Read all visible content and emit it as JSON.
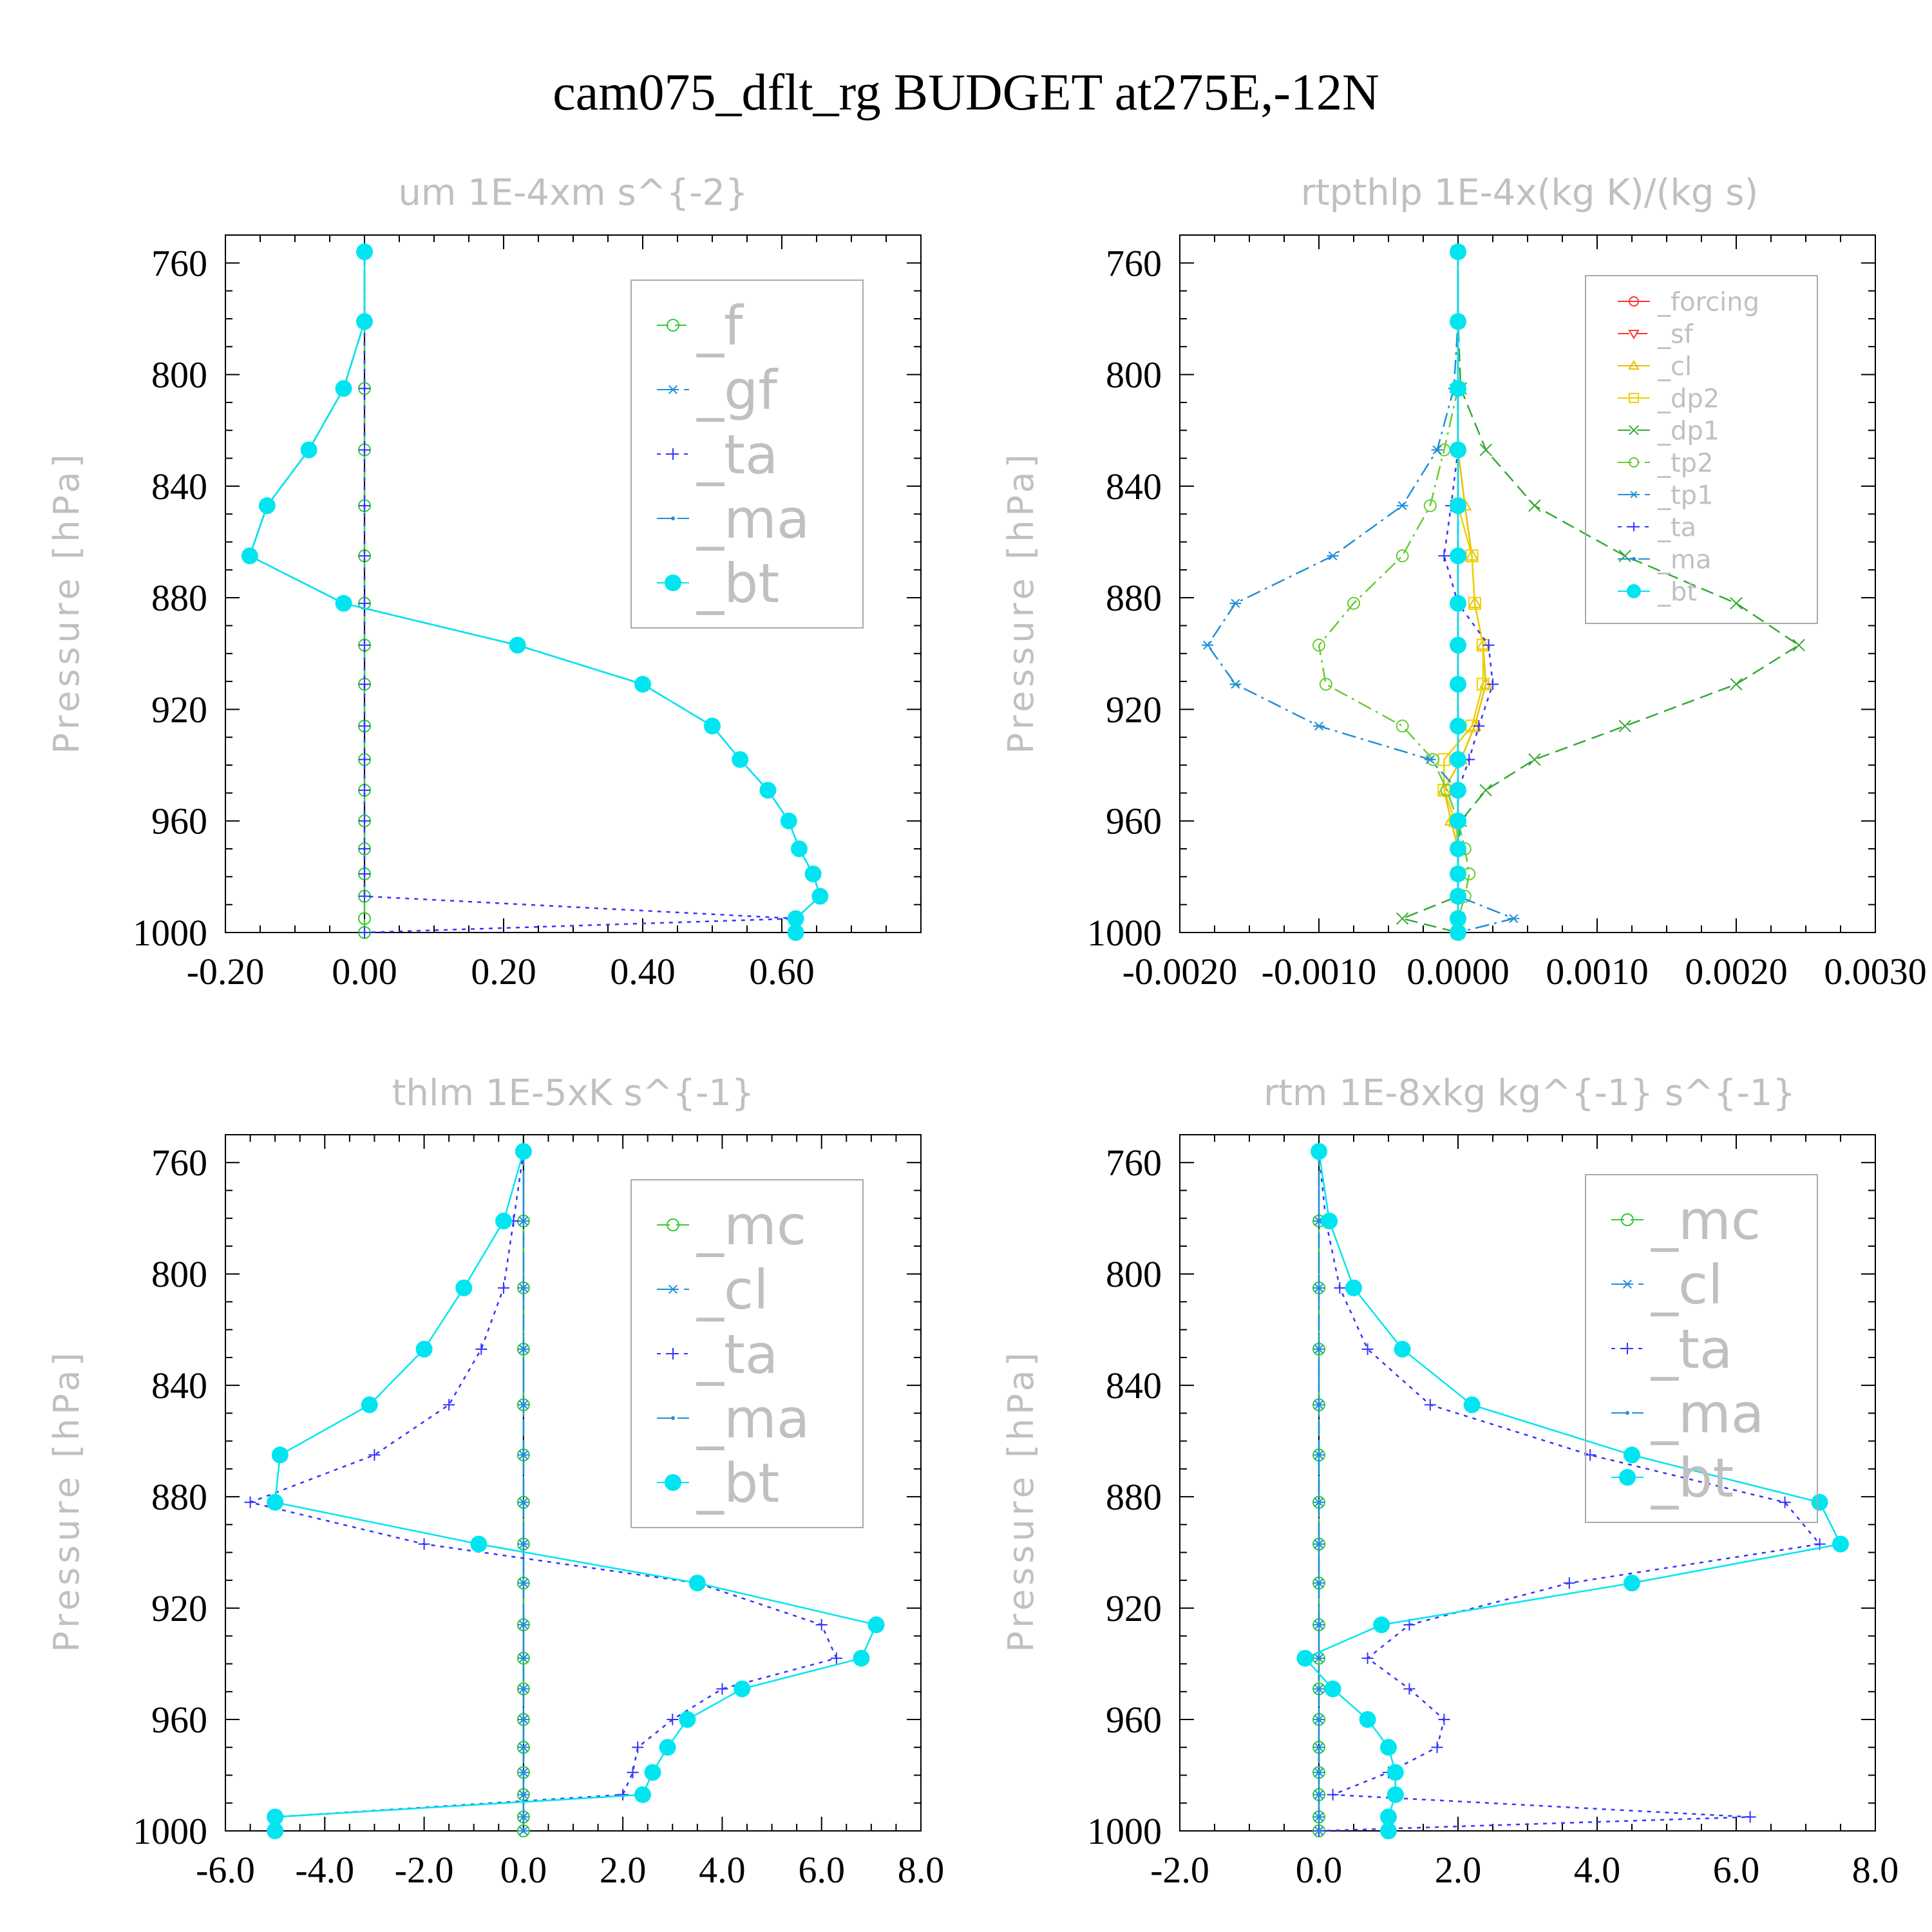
{
  "figure_title": "cam075_dflt_rg  BUDGET at275E,-12N",
  "colors": {
    "_f": "#33cc33",
    "_gf": "#1f8fd8",
    "_ta": "#3333ff",
    "_ma": "#1f8fd8",
    "_bt": "#00e5f0",
    "_forcing": "#ff3333",
    "_sf": "#ff3333",
    "_cl": "#e8c000",
    "_dp2": "#f0d000",
    "_dp1": "#33aa33",
    "_tp2": "#66cc33",
    "_tp1": "#1f8fd8",
    "_mc": "#33cc33",
    "_cl_b": "#1f8fd8"
  },
  "chart_data": [
    {
      "type": "line",
      "title": "um   1E-4xm s^{-2}",
      "ylabel": "Pressure [hPa]",
      "xlim": [
        -0.2,
        0.8
      ],
      "ylim": [
        1000,
        750
      ],
      "xticks": [
        -0.2,
        0.0,
        0.2,
        0.4,
        0.6
      ],
      "xtick_labels": [
        "-0.20",
        "0.00",
        "0.20",
        "0.40",
        "0.60"
      ],
      "yticks": [
        760,
        800,
        840,
        880,
        920,
        960,
        1000
      ],
      "ytick_labels": [
        "760",
        "800",
        "840",
        "880",
        "920",
        "960",
        "1000"
      ],
      "legend_size": "large",
      "y": [
        756,
        781,
        805,
        827,
        847,
        865,
        882,
        897,
        911,
        926,
        938,
        949,
        960,
        970,
        979,
        987,
        995,
        1000
      ],
      "series": [
        {
          "name": "_f",
          "color_key": "_f",
          "marker": "o",
          "x": [
            0,
            0,
            0,
            0,
            0,
            0,
            0,
            0,
            0,
            0,
            0,
            0,
            0,
            0,
            0,
            0,
            0,
            0
          ]
        },
        {
          "name": "_gf",
          "color_key": "_gf",
          "marker": "*",
          "x": [
            0.0,
            0.0,
            -0.03,
            -0.08,
            -0.14,
            -0.165,
            -0.03,
            0.22,
            0.4,
            0.5,
            0.54,
            0.58,
            0.61,
            0.625,
            0.645,
            0.655,
            0.62,
            0.62
          ]
        },
        {
          "name": "_ta",
          "color_key": "_ta",
          "marker": "+",
          "x": [
            0,
            0,
            0,
            0,
            0,
            0,
            0,
            0,
            0,
            0,
            0,
            0,
            0,
            0,
            0,
            0,
            0.62,
            0.0
          ]
        },
        {
          "name": "_ma",
          "color_key": "_ma",
          "marker": ".",
          "x": [
            0.0,
            0.0,
            -0.03,
            -0.08,
            -0.14,
            -0.165,
            -0.03,
            0.22,
            0.4,
            0.5,
            0.54,
            0.58,
            0.61,
            0.625,
            0.645,
            0.655,
            0.62,
            0.62
          ]
        },
        {
          "name": "_bt",
          "color_key": "_bt",
          "marker": "dot",
          "x": [
            0.0,
            0.0,
            -0.03,
            -0.08,
            -0.14,
            -0.165,
            -0.03,
            0.22,
            0.4,
            0.5,
            0.54,
            0.58,
            0.61,
            0.625,
            0.645,
            0.655,
            0.62,
            0.62
          ]
        }
      ]
    },
    {
      "type": "line",
      "title": "rtpthlp   1E-4x(kg K)/(kg s)",
      "ylabel": "Pressure [hPa]",
      "xlim": [
        -0.002,
        0.003
      ],
      "ylim": [
        1000,
        750
      ],
      "xticks": [
        -0.002,
        -0.001,
        0.0,
        0.001,
        0.002,
        0.003
      ],
      "xtick_labels": [
        "-0.0020",
        "-0.0010",
        "0.0000",
        "0.0010",
        "0.0020",
        "0.0030"
      ],
      "yticks": [
        760,
        800,
        840,
        880,
        920,
        960,
        1000
      ],
      "ytick_labels": [
        "760",
        "800",
        "840",
        "880",
        "920",
        "960",
        "1000"
      ],
      "legend_size": "small",
      "y": [
        756,
        781,
        805,
        827,
        847,
        865,
        882,
        897,
        911,
        926,
        938,
        949,
        960,
        970,
        979,
        987,
        995,
        1000
      ],
      "series": [
        {
          "name": "_forcing",
          "color_key": "_forcing",
          "marker": "o",
          "x": [
            0,
            0,
            0,
            0,
            0,
            0,
            0,
            0,
            0,
            0,
            0,
            0,
            0,
            0,
            0,
            0,
            0,
            0
          ]
        },
        {
          "name": "_sf",
          "color_key": "_sf",
          "marker": "v",
          "x": [
            0,
            0,
            0,
            0,
            0,
            0,
            0,
            0,
            0,
            0,
            0,
            0,
            0,
            0,
            0,
            0,
            0,
            0
          ]
        },
        {
          "name": "_cl",
          "color_key": "_cl",
          "marker": "^",
          "x": [
            0,
            0,
            0,
            0,
            5e-05,
            0.0001,
            0.00012,
            0.00018,
            0.0002,
            0.00012,
            2e-05,
            -0.0001,
            -5e-05,
            0,
            0,
            0,
            0,
            0
          ]
        },
        {
          "name": "_dp2",
          "color_key": "_dp2",
          "marker": "s",
          "x": [
            0,
            0,
            0,
            0,
            0,
            0.0001,
            0.00012,
            0.00018,
            0.00018,
            0.0001,
            -0.0001,
            -0.0001,
            -2e-05,
            0,
            0,
            0,
            0,
            0
          ]
        },
        {
          "name": "_dp1",
          "color_key": "_dp1",
          "marker": "x",
          "x": [
            0,
            0,
            2e-05,
            0.0002,
            0.00055,
            0.0012,
            0.002,
            0.00245,
            0.002,
            0.0012,
            0.00055,
            0.0002,
            2e-05,
            0,
            0,
            0,
            -0.0004,
            0
          ]
        },
        {
          "name": "_tp2",
          "color_key": "_tp2",
          "marker": "o",
          "x": [
            0,
            0,
            0,
            -0.0001,
            -0.0002,
            -0.0004,
            -0.00075,
            -0.001,
            -0.00095,
            -0.0004,
            -0.00018,
            -8e-05,
            0,
            5e-05,
            8e-05,
            5e-05,
            0,
            0
          ]
        },
        {
          "name": "_tp1",
          "color_key": "_tp1",
          "marker": "*",
          "x": [
            0,
            0,
            -3e-05,
            -0.00015,
            -0.0004,
            -0.0009,
            -0.0016,
            -0.0018,
            -0.0016,
            -0.001,
            -0.0002,
            0,
            0,
            0,
            0,
            0,
            0.0004,
            0
          ]
        },
        {
          "name": "_ta",
          "color_key": "_ta",
          "marker": "+",
          "x": [
            0,
            0,
            0,
            0,
            -5e-05,
            -0.0001,
            0,
            0.00022,
            0.00025,
            0.00015,
            8e-05,
            0,
            0,
            0,
            0,
            0,
            0,
            0
          ]
        },
        {
          "name": "_ma",
          "color_key": "_ma",
          "marker": ".",
          "x": [
            0,
            0,
            0,
            0,
            0,
            0,
            0,
            0,
            0,
            0,
            0,
            0,
            0,
            0,
            0,
            0,
            0,
            0
          ]
        },
        {
          "name": "_bt",
          "color_key": "_bt",
          "marker": "dot",
          "x": [
            0,
            0,
            0,
            0,
            0,
            0,
            0,
            0,
            0,
            0,
            0,
            0,
            0,
            0,
            0,
            0,
            0,
            0
          ]
        }
      ]
    },
    {
      "type": "line",
      "title": "thlm   1E-5xK s^{-1}",
      "ylabel": "Pressure [hPa]",
      "xlim": [
        -6.0,
        8.0
      ],
      "ylim": [
        1000,
        750
      ],
      "xticks": [
        -6,
        -4,
        -2,
        0,
        2,
        4,
        6,
        8
      ],
      "xtick_labels": [
        "-6.0",
        "-4.0",
        "-2.0",
        "0.0",
        "2.0",
        "4.0",
        "6.0",
        "8.0"
      ],
      "yticks": [
        760,
        800,
        840,
        880,
        920,
        960,
        1000
      ],
      "ytick_labels": [
        "760",
        "800",
        "840",
        "880",
        "920",
        "960",
        "1000"
      ],
      "legend_size": "large",
      "y": [
        756,
        781,
        805,
        827,
        847,
        865,
        882,
        897,
        911,
        926,
        938,
        949,
        960,
        970,
        979,
        987,
        995,
        1000
      ],
      "series": [
        {
          "name": "_mc",
          "color_key": "_mc",
          "marker": "o",
          "x": [
            0,
            0,
            0,
            0,
            0,
            0,
            0,
            0,
            0,
            0,
            0,
            0,
            0,
            0,
            0,
            0,
            0,
            0
          ]
        },
        {
          "name": "_cl",
          "color_key": "_cl_b",
          "marker": "*",
          "x": [
            0,
            0,
            0,
            0,
            0,
            0,
            0,
            0,
            0,
            0,
            0,
            0,
            0,
            0,
            0,
            0,
            0,
            0
          ]
        },
        {
          "name": "_ta",
          "color_key": "_ta",
          "marker": "+",
          "x": [
            0.0,
            -0.2,
            -0.4,
            -0.85,
            -1.5,
            -3.0,
            -5.5,
            -2.0,
            3.5,
            6.0,
            6.3,
            4.0,
            3.0,
            2.3,
            2.2,
            2.0,
            -5.0,
            -5.0
          ]
        },
        {
          "name": "_ma",
          "color_key": "_ma",
          "marker": ".",
          "x": [
            0,
            0,
            0,
            0,
            0,
            0,
            0,
            0,
            0,
            0,
            0,
            0,
            0,
            0,
            0,
            0,
            0,
            0
          ]
        },
        {
          "name": "_bt",
          "color_key": "_bt",
          "marker": "dot",
          "x": [
            0.0,
            -0.4,
            -1.2,
            -2.0,
            -3.1,
            -4.9,
            -5.0,
            -0.9,
            3.5,
            7.1,
            6.8,
            4.4,
            3.3,
            2.9,
            2.6,
            2.4,
            -5.0,
            -5.0
          ]
        }
      ]
    },
    {
      "type": "line",
      "title": "rtm   1E-8xkg kg^{-1} s^{-1}",
      "ylabel": "Pressure [hPa]",
      "xlim": [
        -2.0,
        8.0
      ],
      "ylim": [
        1000,
        750
      ],
      "xticks": [
        -2,
        0,
        2,
        4,
        6,
        8
      ],
      "xtick_labels": [
        "-2.0",
        "0.0",
        "2.0",
        "4.0",
        "6.0",
        "8.0"
      ],
      "yticks": [
        760,
        800,
        840,
        880,
        920,
        960,
        1000
      ],
      "ytick_labels": [
        "760",
        "800",
        "840",
        "880",
        "920",
        "960",
        "1000"
      ],
      "legend_size": "large",
      "y": [
        756,
        781,
        805,
        827,
        847,
        865,
        882,
        897,
        911,
        926,
        938,
        949,
        960,
        970,
        979,
        987,
        995,
        1000
      ],
      "series": [
        {
          "name": "_mc",
          "color_key": "_mc",
          "marker": "o",
          "x": [
            0,
            0,
            0,
            0,
            0,
            0,
            0,
            0,
            0,
            0,
            0,
            0,
            0,
            0,
            0,
            0,
            0,
            0
          ]
        },
        {
          "name": "_cl",
          "color_key": "_cl_b",
          "marker": "*",
          "x": [
            0,
            0,
            0,
            0,
            0,
            0,
            0,
            0,
            0,
            0,
            0,
            0,
            0,
            0,
            0,
            0,
            0,
            0
          ]
        },
        {
          "name": "_ta",
          "color_key": "_ta",
          "marker": "+",
          "x": [
            0.0,
            0.1,
            0.3,
            0.7,
            1.6,
            3.9,
            6.7,
            7.2,
            3.6,
            1.3,
            0.7,
            1.3,
            1.8,
            1.7,
            1.0,
            0.2,
            6.2,
            0.0
          ]
        },
        {
          "name": "_ma",
          "color_key": "_ma",
          "marker": ".",
          "x": [
            0,
            0,
            0,
            0,
            0,
            0,
            0,
            0,
            0,
            0,
            0,
            0,
            0,
            0,
            0,
            0,
            0,
            0
          ]
        },
        {
          "name": "_bt",
          "color_key": "_bt",
          "marker": "dot",
          "x": [
            0.0,
            0.15,
            0.5,
            1.2,
            2.2,
            4.5,
            7.2,
            7.5,
            4.5,
            0.9,
            -0.2,
            0.2,
            0.7,
            1.0,
            1.1,
            1.1,
            1.0,
            1.0
          ]
        }
      ]
    }
  ]
}
